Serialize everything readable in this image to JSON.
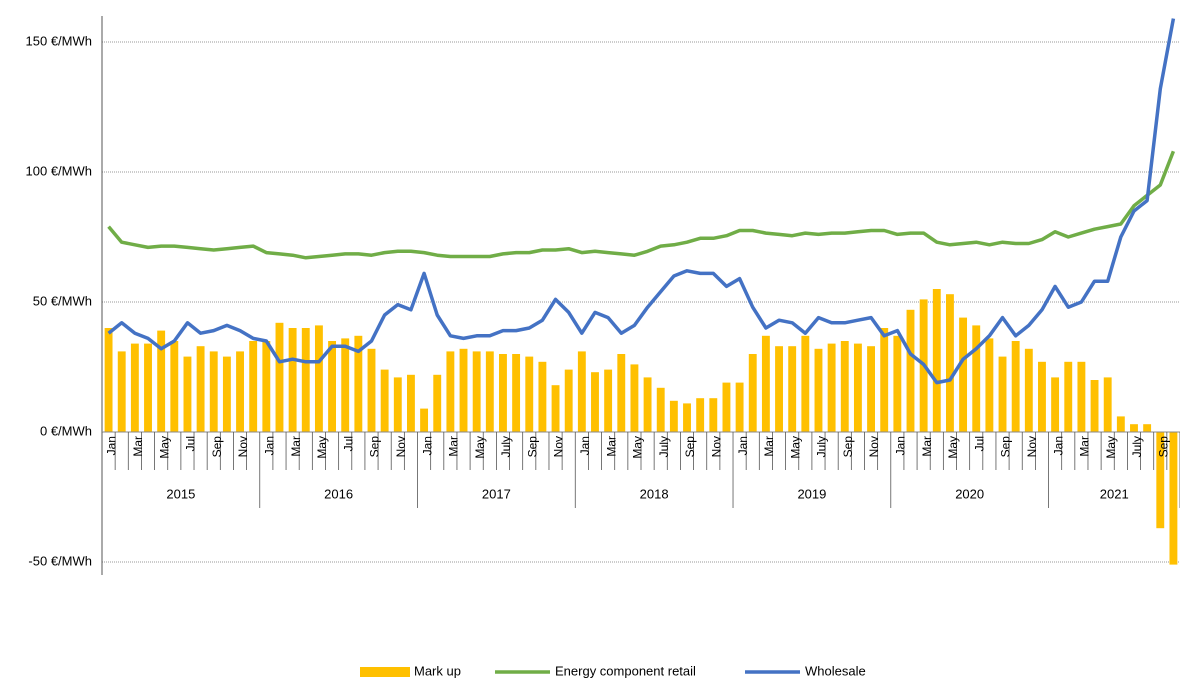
{
  "chart_data": {
    "type": "bar",
    "categories": [
      "Jan",
      null,
      "Mar",
      null,
      "May",
      null,
      "Jul",
      null,
      "Sep",
      null,
      "Nov",
      null,
      "Jan",
      null,
      "Mar",
      null,
      "May",
      null,
      "Jul",
      null,
      "Sep",
      null,
      "Nov",
      null,
      "Jan",
      null,
      "Mar",
      null,
      "May",
      null,
      "July",
      null,
      "Sep",
      null,
      "Nov",
      null,
      "Jan",
      null,
      "Mar",
      null,
      "May",
      null,
      "July",
      null,
      "Sep",
      null,
      "Nov",
      null,
      "Jan",
      null,
      "Mar",
      null,
      "May",
      null,
      "July",
      null,
      "Sep",
      null,
      "Nov",
      null,
      "Jan",
      null,
      "Mar",
      null,
      "May",
      null,
      "Jul",
      null,
      "Sep",
      null,
      "Nov",
      null,
      "Jan",
      null,
      "Mar",
      null,
      "May",
      null,
      "July",
      null,
      "Sep",
      null
    ],
    "years": [
      "2015",
      "2016",
      "2017",
      "2018",
      "2019",
      "2020",
      "2021"
    ],
    "series": [
      {
        "name": "Mark up",
        "type": "bar",
        "color": "#ffc000",
        "values": [
          40,
          31,
          34,
          34,
          39,
          35,
          29,
          33,
          31,
          29,
          31,
          35,
          35,
          42,
          40,
          40,
          41,
          35,
          36,
          37,
          32,
          24,
          21,
          22,
          9,
          22,
          31,
          32,
          31,
          31,
          30,
          30,
          29,
          27,
          18,
          24,
          31,
          23,
          24,
          30,
          26,
          21,
          17,
          12,
          11,
          13,
          13,
          19,
          19,
          30,
          37,
          33,
          33,
          37,
          32,
          34,
          35,
          34,
          33,
          40,
          37,
          47,
          51,
          55,
          53,
          44,
          41,
          36,
          29,
          35,
          32,
          27,
          21,
          27,
          27,
          20,
          21,
          6,
          3,
          3,
          -37,
          -51
        ]
      },
      {
        "name": "Energy component retail",
        "type": "line",
        "color": "#70ad47",
        "values": [
          79,
          73,
          72,
          71,
          71.5,
          71.5,
          71,
          70.5,
          70,
          70.5,
          71,
          71.5,
          69,
          68.5,
          68,
          67,
          67.5,
          68,
          68.5,
          68.5,
          68,
          69,
          69.5,
          69.5,
          69,
          68,
          67.5,
          67.5,
          67.5,
          67.5,
          68.5,
          69,
          69,
          70,
          70,
          70.5,
          69,
          69.5,
          69,
          68.5,
          68,
          69.5,
          71.5,
          72,
          73,
          74.5,
          74.5,
          75.5,
          77.5,
          77.5,
          76.5,
          76,
          75.5,
          76.5,
          76,
          76.5,
          76.5,
          77,
          77.5,
          77.5,
          76,
          76.5,
          76.5,
          73,
          72,
          72.5,
          73,
          72,
          73,
          72.5,
          72.5,
          74,
          77,
          75,
          76.5,
          78,
          79,
          80,
          87,
          91,
          95,
          108
        ]
      },
      {
        "name": "Wholesale",
        "type": "line",
        "color": "#4472c4",
        "values": [
          38,
          42,
          38,
          36,
          32,
          35,
          42,
          38,
          39,
          41,
          39,
          36,
          35,
          27,
          28,
          27,
          27,
          33,
          33,
          31,
          35,
          45,
          49,
          47,
          61,
          45,
          37,
          36,
          37,
          37,
          39,
          39,
          40,
          43,
          51,
          46,
          38,
          46,
          44,
          38,
          41,
          48,
          54,
          60,
          62,
          61,
          61,
          56,
          59,
          48,
          40,
          43,
          42,
          38,
          44,
          42,
          42,
          43,
          44,
          37,
          39,
          30,
          26,
          19,
          20,
          28,
          32,
          37,
          44,
          37,
          41,
          47,
          56,
          48,
          50,
          58,
          58,
          75,
          85,
          89,
          132,
          159
        ]
      }
    ],
    "ylim": [
      -55,
      160
    ],
    "yticks": [
      {
        "value": -50,
        "label": "-50 €/MWh"
      },
      {
        "value": 0,
        "label": "0 €/MWh"
      },
      {
        "value": 50,
        "label": "50 €/MWh"
      },
      {
        "value": 100,
        "label": "100 €/MWh"
      },
      {
        "value": 150,
        "label": "150 €/MWh"
      }
    ],
    "grid": true,
    "legend": "bottom"
  }
}
